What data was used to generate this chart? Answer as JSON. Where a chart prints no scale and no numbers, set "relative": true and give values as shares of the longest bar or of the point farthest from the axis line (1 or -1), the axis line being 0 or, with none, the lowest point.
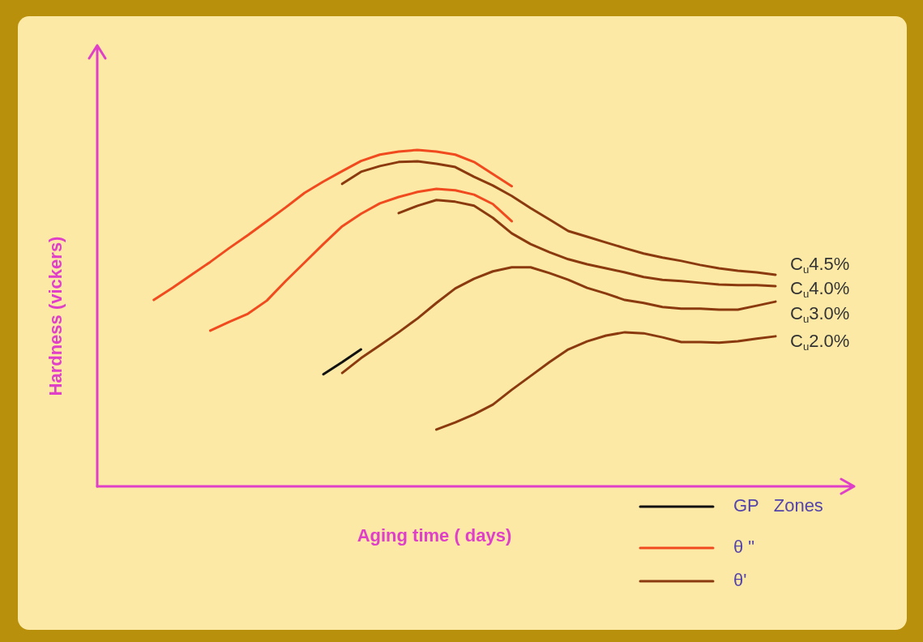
{
  "chart_data": {
    "type": "line",
    "relative": true,
    "xlabel": "Aging time ( days)",
    "ylabel": "Hardness (vickers)",
    "legend": "bottom right",
    "marker": "none",
    "line_style": "solid",
    "categories": [
      null,
      null,
      null,
      null,
      null,
      null,
      null,
      null,
      null,
      null,
      null,
      null,
      null,
      null,
      null,
      null,
      null,
      null,
      null,
      null,
      null,
      null,
      null,
      null,
      null,
      null,
      null,
      null,
      null,
      null,
      null,
      null,
      null,
      null,
      null,
      null,
      null,
      null,
      null,
      null,
      null
    ],
    "series": [
      {
        "name": "GP   Zones",
        "color": "#111111",
        "values": [
          null,
          null,
          null,
          null,
          null,
          null,
          null,
          null,
          null,
          null,
          null,
          null,
          0.333,
          0.369,
          0.407,
          null,
          null,
          null,
          null,
          null,
          null,
          null,
          null,
          null,
          null,
          null,
          null,
          null,
          null,
          null,
          null,
          null,
          null,
          null,
          null,
          null,
          null,
          null,
          null,
          null,
          null
        ]
      },
      {
        "name": "θ \"",
        "color": "#f04a1e",
        "values": [
          null,
          null,
          null,
          0.554,
          0.59,
          0.629,
          0.667,
          0.708,
          0.747,
          0.788,
          0.829,
          0.872,
          0.906,
          0.937,
          0.967,
          0.986,
          0.995,
          1.0,
          0.995,
          0.986,
          0.964,
          0.928,
          0.892,
          null,
          null,
          null,
          null,
          null,
          null,
          null,
          null,
          null,
          null,
          null,
          null,
          null,
          null,
          null,
          null,
          null,
          null
        ]
      },
      {
        "name": "θ'",
        "color": "#8b3a0f",
        "values": [
          null,
          null,
          null,
          null,
          null,
          null,
          null,
          null,
          null,
          null,
          null,
          null,
          null,
          0.899,
          0.935,
          0.952,
          0.964,
          0.966,
          0.959,
          0.949,
          0.92,
          0.894,
          0.863,
          0.827,
          0.793,
          0.759,
          0.742,
          0.725,
          0.708,
          0.692,
          0.68,
          0.67,
          0.658,
          0.648,
          0.641,
          0.636,
          0.629,
          null,
          null,
          null,
          null
        ]
      },
      {
        "color": "#f04a1e",
        "values": [
          null,
          null,
          null,
          null,
          null,
          null,
          0.463,
          0.489,
          0.513,
          0.552,
          0.61,
          0.665,
          0.72,
          0.773,
          0.81,
          0.841,
          0.86,
          0.875,
          0.884,
          0.88,
          0.867,
          0.839,
          0.788,
          null,
          null,
          null,
          null,
          null,
          null,
          null,
          null,
          null,
          null,
          null,
          null,
          null,
          null,
          null,
          null,
          null,
          null
        ]
      },
      {
        "color": "#8b3a0f",
        "values": [
          null,
          null,
          null,
          null,
          null,
          null,
          null,
          null,
          null,
          null,
          null,
          null,
          null,
          null,
          null,
          null,
          0.812,
          0.834,
          0.851,
          0.846,
          0.834,
          0.798,
          0.752,
          0.72,
          0.696,
          0.675,
          0.66,
          0.648,
          0.636,
          0.622,
          0.614,
          0.61,
          0.605,
          0.6,
          0.598,
          0.598,
          0.595,
          null,
          null,
          null,
          null
        ]
      },
      {
        "color": "#8b3a0f",
        "values": [
          null,
          null,
          null,
          null,
          null,
          null,
          null,
          null,
          null,
          null,
          null,
          null,
          null,
          0.337,
          0.381,
          0.419,
          0.458,
          0.499,
          0.545,
          0.588,
          0.617,
          0.639,
          0.651,
          0.651,
          0.634,
          0.614,
          0.59,
          0.573,
          0.554,
          0.545,
          0.533,
          0.528,
          0.528,
          0.525,
          0.525,
          0.537,
          0.549,
          null,
          null,
          null,
          null
        ]
      },
      {
        "color": "#8b3a0f",
        "values": [
          null,
          null,
          null,
          null,
          null,
          null,
          null,
          null,
          null,
          null,
          null,
          null,
          null,
          null,
          null,
          null,
          null,
          null,
          0.169,
          0.19,
          0.214,
          0.243,
          0.287,
          0.328,
          0.369,
          0.407,
          0.431,
          0.448,
          0.458,
          0.455,
          0.443,
          0.429,
          0.429,
          0.427,
          0.431,
          0.439,
          0.446,
          null,
          null,
          null,
          null
        ]
      }
    ],
    "annotations": [
      "C$_{u}$4.5%",
      "C$_{u}$4.0%",
      "C$_{u}$3.0%",
      "C$_{u}$2.0%"
    ]
  }
}
